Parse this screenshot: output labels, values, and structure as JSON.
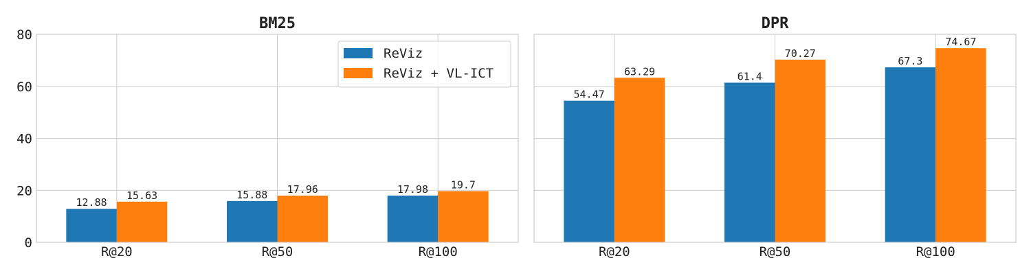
{
  "chart_data": [
    {
      "type": "bar",
      "title": "BM25",
      "xlabel": "",
      "ylabel": "",
      "categories": [
        "R@20",
        "R@50",
        "R@100"
      ],
      "ylim": [
        0,
        80
      ],
      "yticks": [
        0,
        20,
        40,
        60,
        80
      ],
      "grid": true,
      "legend": "top-right",
      "series": [
        {
          "name": "ReViz",
          "color": "#1f77b4",
          "values": [
            12.88,
            15.88,
            17.98
          ],
          "labels": [
            "12.88",
            "15.88",
            "17.98"
          ]
        },
        {
          "name": "ReViz + VL-ICT",
          "color": "#ff7f0e",
          "values": [
            15.63,
            17.96,
            19.7
          ],
          "labels": [
            "15.63",
            "17.96",
            "19.7"
          ]
        }
      ]
    },
    {
      "type": "bar",
      "title": "DPR",
      "xlabel": "",
      "ylabel": "",
      "categories": [
        "R@20",
        "R@50",
        "R@100"
      ],
      "ylim": [
        0,
        80
      ],
      "yticks": [
        0,
        20,
        40,
        60,
        80
      ],
      "grid": true,
      "legend": "none",
      "series": [
        {
          "name": "ReViz",
          "color": "#1f77b4",
          "values": [
            54.47,
            61.4,
            67.3
          ],
          "labels": [
            "54.47",
            "61.4",
            "67.3"
          ]
        },
        {
          "name": "ReViz + VL-ICT",
          "color": "#ff7f0e",
          "values": [
            63.29,
            70.27,
            74.67
          ],
          "labels": [
            "63.29",
            "70.27",
            "74.67"
          ]
        }
      ]
    }
  ]
}
